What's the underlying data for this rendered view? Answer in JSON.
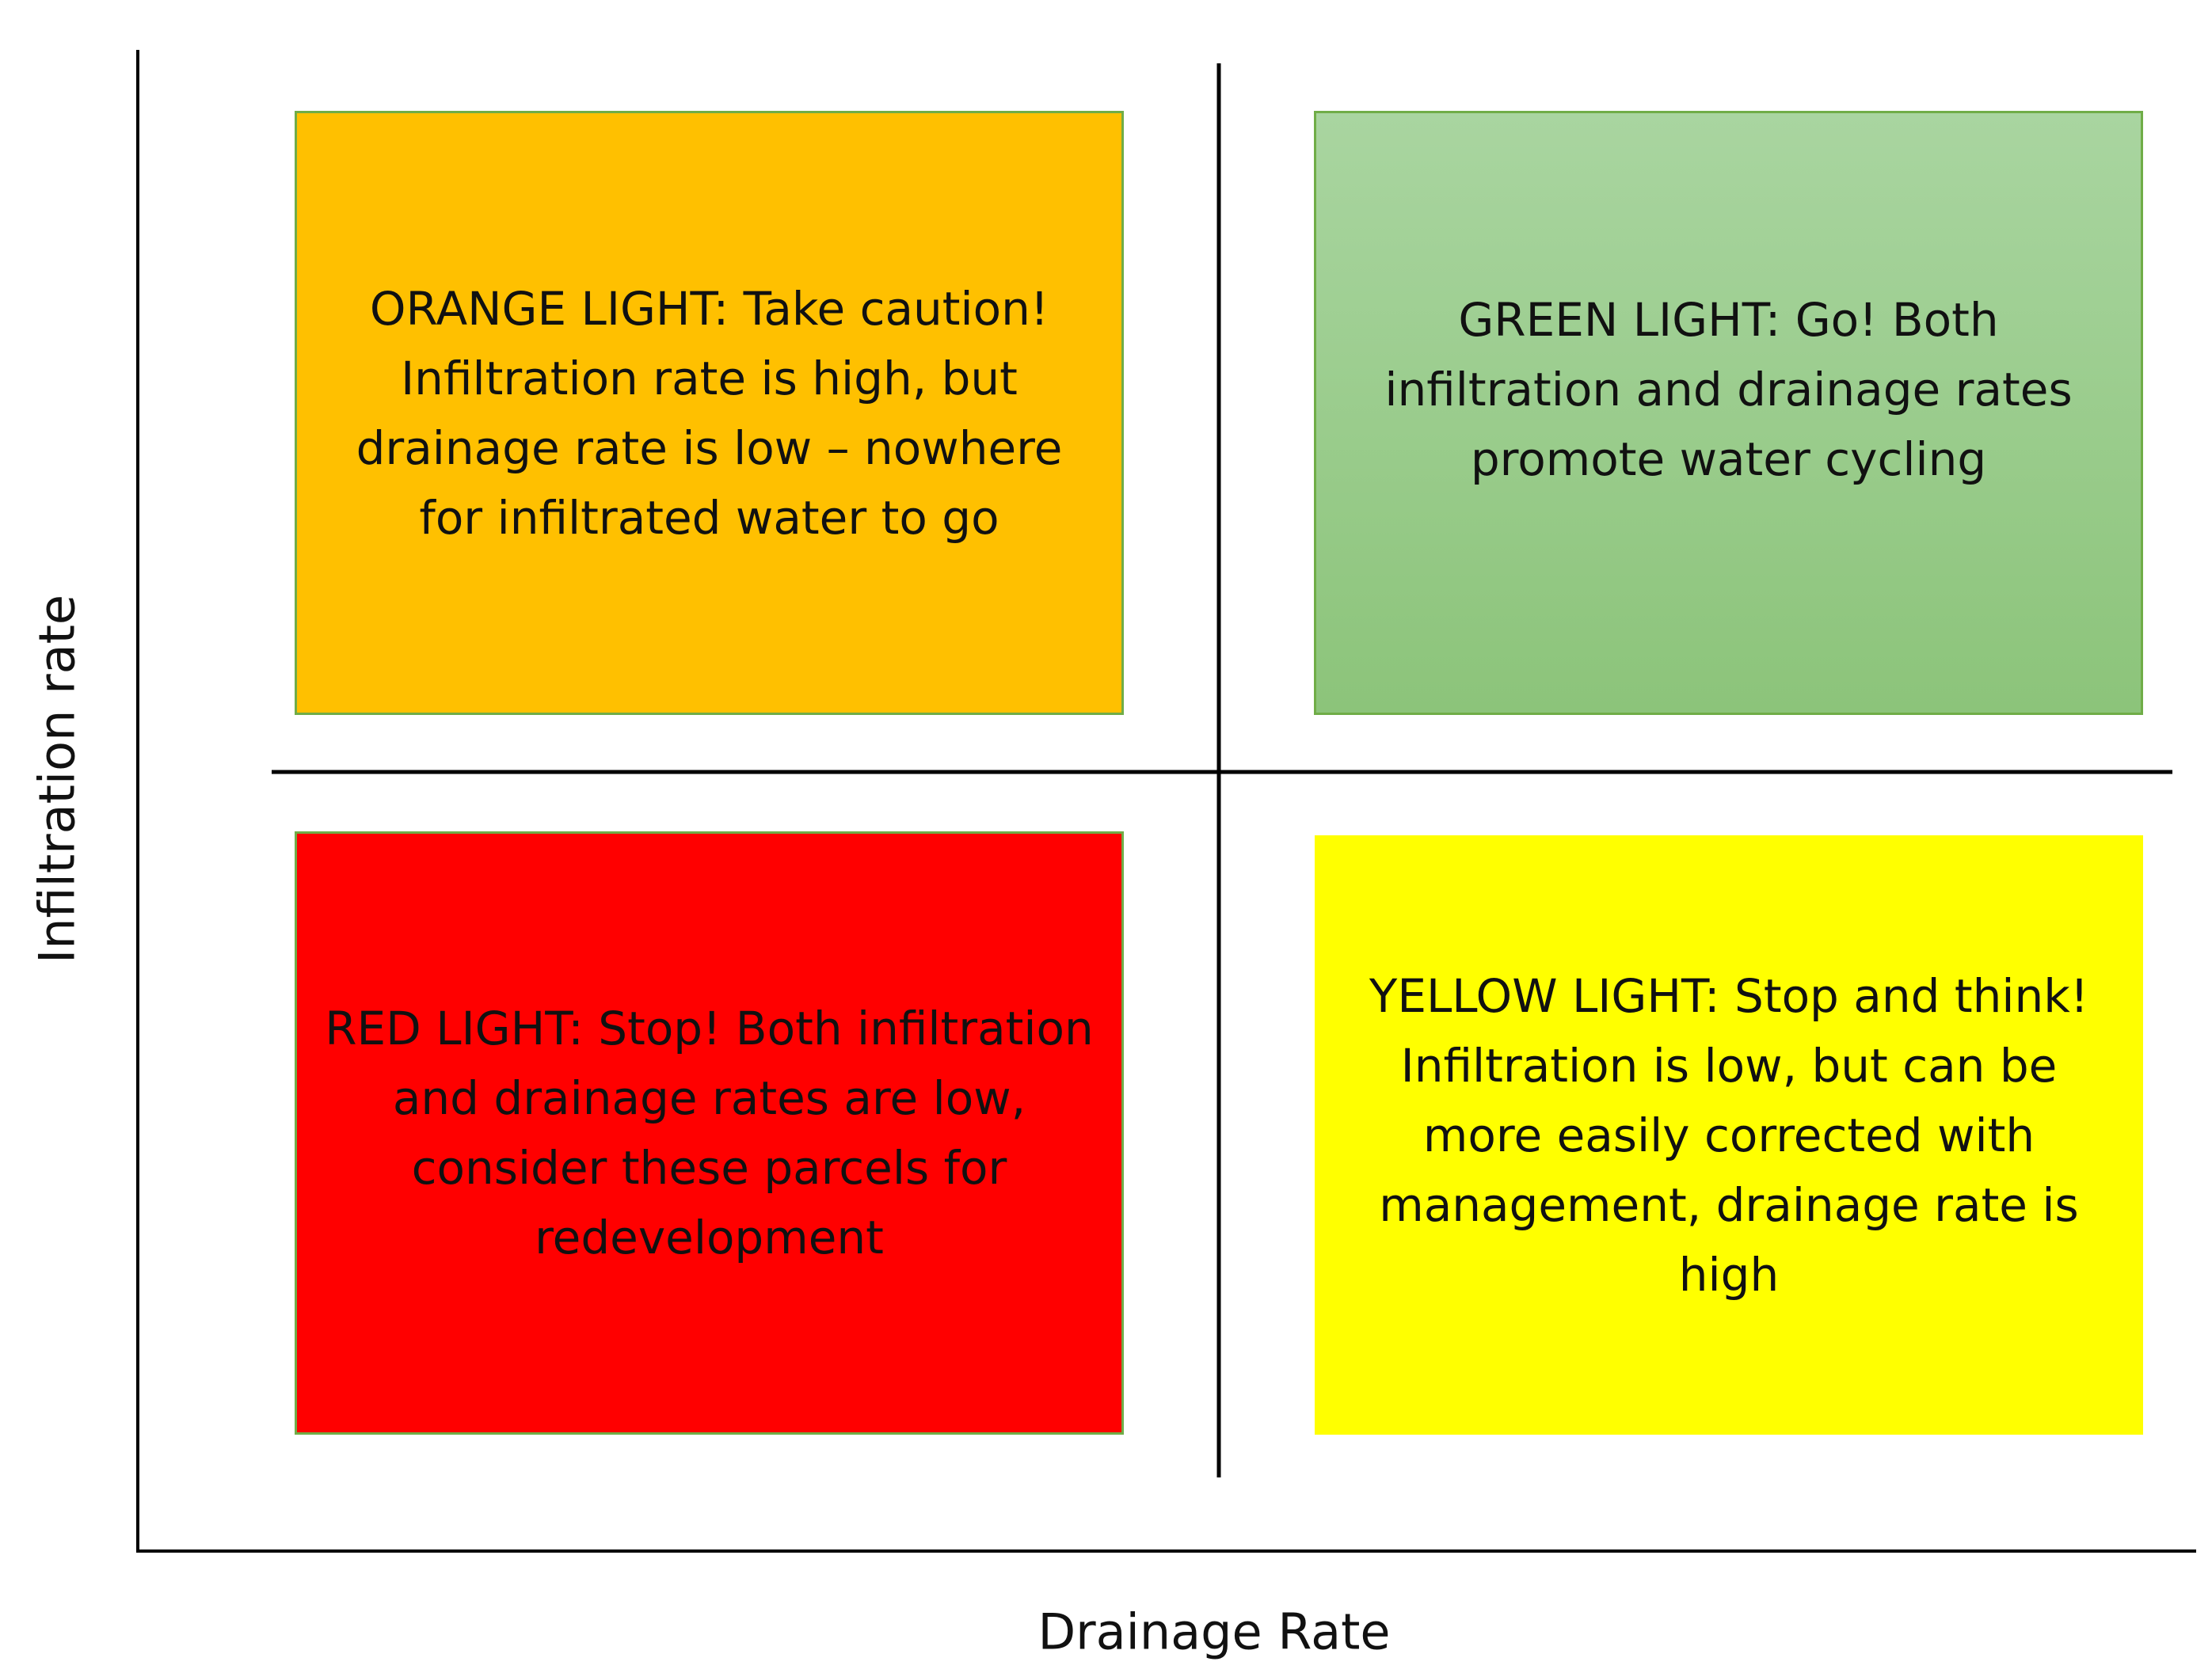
{
  "axes": {
    "x_label": "Drainage Rate",
    "y_label": "Infiltration rate"
  },
  "quadrants": [
    {
      "label": "ORANGE LIGHT: Take caution! Infiltration rate is high, but drainage rate is low – nowhere for infiltrated water to go"
    },
    {
      "label": "GREEN LIGHT: Go! Both infiltration and drainage rates promote water cycling"
    },
    {
      "label": "RED LIGHT: Stop! Both infiltration and drainage rates are low, consider these parcels for redevelopment"
    },
    {
      "label": "YELLOW LIGHT: Stop and think! Infiltration is low, but can be more easily corrected with management, drainage rate is high"
    }
  ]
}
